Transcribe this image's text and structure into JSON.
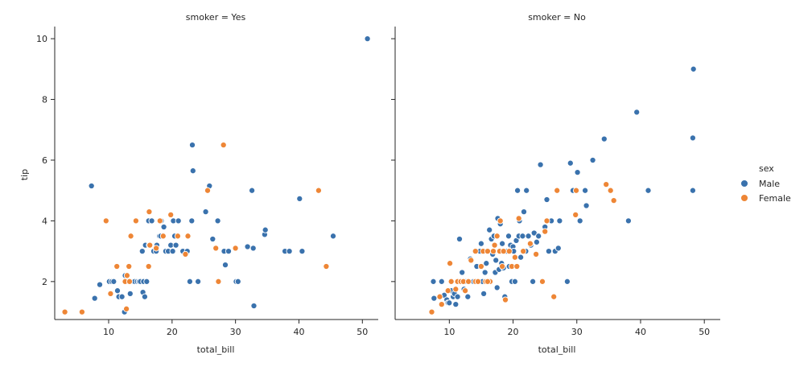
{
  "chart_data": {
    "type": "scatter",
    "colors": {
      "Male": "#3a72ad",
      "Female": "#ee8636"
    },
    "legend": {
      "title": "sex",
      "entries": [
        {
          "label": "Male",
          "color": "#3a72ad"
        },
        {
          "label": "Female",
          "color": "#ee8636"
        }
      ],
      "placement": "right"
    },
    "ylabel": "tip",
    "ylim": [
      0.75,
      10.4
    ],
    "yticks": [
      2,
      4,
      6,
      8,
      10
    ],
    "panels": [
      {
        "title": "smoker = Yes",
        "xlabel": "total_bill",
        "xlim": [
          1.5,
          52.5
        ],
        "xticks": [
          10,
          20,
          30,
          40,
          50
        ],
        "series": [
          {
            "name": "Male",
            "points": [
              [
                7.3,
                5.15
              ],
              [
                7.8,
                1.45
              ],
              [
                8.6,
                1.9
              ],
              [
                10.1,
                2.0
              ],
              [
                10.5,
                2.0
              ],
              [
                10.8,
                2.0
              ],
              [
                11.4,
                1.7
              ],
              [
                11.6,
                1.5
              ],
              [
                12.1,
                1.5
              ],
              [
                12.5,
                1.0
              ],
              [
                12.6,
                2.2
              ],
              [
                13.1,
                2.0
              ],
              [
                13.4,
                1.6
              ],
              [
                13.5,
                2.0
              ],
              [
                13.9,
                2.0
              ],
              [
                14.1,
                2.0
              ],
              [
                14.5,
                2.0
              ],
              [
                14.8,
                2.0
              ],
              [
                15.0,
                2.0
              ],
              [
                15.3,
                3.0
              ],
              [
                15.4,
                1.65
              ],
              [
                15.5,
                2.0
              ],
              [
                15.7,
                1.5
              ],
              [
                15.8,
                3.2
              ],
              [
                16.0,
                2.0
              ],
              [
                16.3,
                4.0
              ],
              [
                16.4,
                3.2
              ],
              [
                16.8,
                4.0
              ],
              [
                17.1,
                3.0
              ],
              [
                17.5,
                3.0
              ],
              [
                17.6,
                3.2
              ],
              [
                18.0,
                3.5
              ],
              [
                18.2,
                3.5
              ],
              [
                18.3,
                4.0
              ],
              [
                18.7,
                3.8
              ],
              [
                19.0,
                3.0
              ],
              [
                19.4,
                3.0
              ],
              [
                19.8,
                3.2
              ],
              [
                20.1,
                3.0
              ],
              [
                20.2,
                4.0
              ],
              [
                20.4,
                3.5
              ],
              [
                20.6,
                3.2
              ],
              [
                21.0,
                4.0
              ],
              [
                21.7,
                3.0
              ],
              [
                22.4,
                3.0
              ],
              [
                22.8,
                2.0
              ],
              [
                23.1,
                4.0
              ],
              [
                23.2,
                6.5
              ],
              [
                23.3,
                5.65
              ],
              [
                24.0,
                2.0
              ],
              [
                24.1,
                2.0
              ],
              [
                25.3,
                4.3
              ],
              [
                25.9,
                5.15
              ],
              [
                26.4,
                3.4
              ],
              [
                27.2,
                4.0
              ],
              [
                28.2,
                3.0
              ],
              [
                28.4,
                2.55
              ],
              [
                28.9,
                3.0
              ],
              [
                30.1,
                2.0
              ],
              [
                30.4,
                2.0
              ],
              [
                31.9,
                3.15
              ],
              [
                32.6,
                5.0
              ],
              [
                32.8,
                3.1
              ],
              [
                32.9,
                1.2
              ],
              [
                34.6,
                3.55
              ],
              [
                34.7,
                3.7
              ],
              [
                37.8,
                3.0
              ],
              [
                38.5,
                3.0
              ],
              [
                40.1,
                4.73
              ],
              [
                40.5,
                3.0
              ],
              [
                45.4,
                3.5
              ],
              [
                50.8,
                10.0
              ]
            ]
          },
          {
            "name": "Female",
            "points": [
              [
                3.1,
                1.0
              ],
              [
                5.8,
                1.0
              ],
              [
                9.6,
                4.0
              ],
              [
                10.3,
                1.6
              ],
              [
                11.3,
                2.5
              ],
              [
                12.6,
                2.0
              ],
              [
                12.8,
                1.1
              ],
              [
                12.9,
                2.2
              ],
              [
                13.2,
                2.5
              ],
              [
                13.3,
                2.0
              ],
              [
                13.5,
                3.5
              ],
              [
                14.3,
                4.0
              ],
              [
                16.3,
                2.5
              ],
              [
                16.4,
                4.3
              ],
              [
                16.5,
                3.2
              ],
              [
                17.5,
                3.1
              ],
              [
                18.1,
                4.0
              ],
              [
                18.6,
                3.5
              ],
              [
                19.8,
                4.2
              ],
              [
                20.9,
                3.5
              ],
              [
                22.1,
                2.9
              ],
              [
                22.5,
                3.5
              ],
              [
                25.6,
                5.0
              ],
              [
                26.9,
                3.1
              ],
              [
                27.3,
                2.0
              ],
              [
                28.1,
                6.5
              ],
              [
                30.0,
                3.1
              ],
              [
                43.1,
                5.0
              ],
              [
                44.3,
                2.5
              ]
            ]
          }
        ]
      },
      {
        "title": "smoker = No",
        "xlabel": "total_bill",
        "xlim": [
          1.5,
          52.5
        ],
        "xticks": [
          10,
          20,
          30,
          40,
          50
        ],
        "series": [
          {
            "name": "Male",
            "points": [
              [
                7.5,
                2.0
              ],
              [
                7.6,
                1.45
              ],
              [
                8.8,
                2.0
              ],
              [
                9.2,
                1.55
              ],
              [
                9.6,
                1.4
              ],
              [
                9.8,
                1.3
              ],
              [
                10.0,
                1.3
              ],
              [
                10.3,
                1.7
              ],
              [
                10.6,
                1.5
              ],
              [
                10.8,
                1.6
              ],
              [
                11.0,
                1.25
              ],
              [
                11.3,
                1.5
              ],
              [
                11.6,
                3.4
              ],
              [
                12.0,
                2.3
              ],
              [
                12.3,
                1.75
              ],
              [
                12.6,
                2.0
              ],
              [
                12.9,
                1.5
              ],
              [
                13.0,
                2.0
              ],
              [
                13.3,
                2.75
              ],
              [
                13.6,
                2.0
              ],
              [
                13.8,
                2.0
              ],
              [
                14.0,
                3.0
              ],
              [
                14.3,
                2.5
              ],
              [
                14.5,
                2.0
              ],
              [
                14.8,
                3.0
              ],
              [
                15.0,
                3.25
              ],
              [
                15.2,
                2.0
              ],
              [
                15.4,
                1.6
              ],
              [
                15.6,
                2.3
              ],
              [
                15.8,
                2.6
              ],
              [
                16.0,
                2.0
              ],
              [
                16.3,
                3.7
              ],
              [
                16.5,
                2.0
              ],
              [
                16.6,
                3.4
              ],
              [
                16.8,
                2.9
              ],
              [
                17.0,
                3.5
              ],
              [
                17.2,
                2.3
              ],
              [
                17.3,
                2.7
              ],
              [
                17.5,
                1.8
              ],
              [
                17.6,
                4.08
              ],
              [
                17.8,
                2.4
              ],
              [
                17.9,
                3.0
              ],
              [
                18.0,
                3.9
              ],
              [
                18.2,
                2.6
              ],
              [
                18.3,
                3.25
              ],
              [
                18.5,
                2.45
              ],
              [
                18.7,
                1.5
              ],
              [
                19.0,
                3.0
              ],
              [
                19.3,
                3.5
              ],
              [
                19.4,
                2.5
              ],
              [
                19.6,
                3.2
              ],
              [
                19.8,
                2.0
              ],
              [
                20.0,
                3.15
              ],
              [
                20.1,
                3.0
              ],
              [
                20.3,
                2.0
              ],
              [
                20.5,
                3.35
              ],
              [
                20.7,
                5.0
              ],
              [
                20.9,
                3.5
              ],
              [
                21.0,
                4.0
              ],
              [
                21.2,
                2.8
              ],
              [
                21.5,
                3.5
              ],
              [
                21.7,
                4.3
              ],
              [
                22.0,
                3.0
              ],
              [
                22.1,
                5.0
              ],
              [
                22.4,
                3.5
              ],
              [
                22.8,
                3.2
              ],
              [
                23.1,
                2.0
              ],
              [
                23.3,
                3.6
              ],
              [
                23.7,
                3.3
              ],
              [
                24.0,
                3.5
              ],
              [
                24.3,
                5.85
              ],
              [
                24.6,
                2.0
              ],
              [
                25.0,
                3.8
              ],
              [
                25.3,
                4.7
              ],
              [
                25.6,
                3.0
              ],
              [
                26.0,
                4.0
              ],
              [
                26.6,
                3.0
              ],
              [
                27.1,
                3.1
              ],
              [
                27.3,
                4.0
              ],
              [
                28.5,
                2.0
              ],
              [
                29.0,
                5.9
              ],
              [
                29.4,
                5.0
              ],
              [
                30.1,
                5.6
              ],
              [
                30.5,
                4.0
              ],
              [
                31.3,
                5.0
              ],
              [
                31.5,
                4.5
              ],
              [
                32.5,
                6.0
              ],
              [
                34.3,
                6.7
              ],
              [
                38.1,
                4.0
              ],
              [
                39.4,
                7.58
              ],
              [
                41.2,
                5.0
              ],
              [
                48.2,
                5.0
              ],
              [
                48.2,
                6.73
              ],
              [
                48.3,
                9.0
              ]
            ]
          },
          {
            "name": "Female",
            "points": [
              [
                7.25,
                1.0
              ],
              [
                8.5,
                1.5
              ],
              [
                8.8,
                1.25
              ],
              [
                9.8,
                1.7
              ],
              [
                10.1,
                2.6
              ],
              [
                10.3,
                2.0
              ],
              [
                11.0,
                1.75
              ],
              [
                11.3,
                2.0
              ],
              [
                11.8,
                2.0
              ],
              [
                12.2,
                2.0
              ],
              [
                12.5,
                1.7
              ],
              [
                13.0,
                2.0
              ],
              [
                13.4,
                2.7
              ],
              [
                14.1,
                2.0
              ],
              [
                14.5,
                2.0
              ],
              [
                15.0,
                2.5
              ],
              [
                15.3,
                3.0
              ],
              [
                15.7,
                2.0
              ],
              [
                16.0,
                3.0
              ],
              [
                16.4,
                2.0
              ],
              [
                16.9,
                3.0
              ],
              [
                17.1,
                3.2
              ],
              [
                17.5,
                3.5
              ],
              [
                17.9,
                3.0
              ],
              [
                18.3,
                2.5
              ],
              [
                18.5,
                3.0
              ],
              [
                18.8,
                1.4
              ],
              [
                19.4,
                3.0
              ],
              [
                19.8,
                2.5
              ],
              [
                20.3,
                2.8
              ],
              [
                20.6,
                2.5
              ],
              [
                20.9,
                4.08
              ],
              [
                21.6,
                3.0
              ],
              [
                22.7,
                3.25
              ],
              [
                23.6,
                2.9
              ],
              [
                24.6,
                2.0
              ],
              [
                25.0,
                3.65
              ],
              [
                25.3,
                4.0
              ],
              [
                26.4,
                1.5
              ],
              [
                26.9,
                5.0
              ],
              [
                29.8,
                4.2
              ],
              [
                29.9,
                5.0
              ],
              [
                34.6,
                5.2
              ],
              [
                35.3,
                5.0
              ],
              [
                35.8,
                4.67
              ],
              [
                16.0,
                2.0
              ],
              [
                14.1,
                3.0
              ],
              [
                18.0,
                4.0
              ]
            ]
          }
        ]
      }
    ]
  }
}
